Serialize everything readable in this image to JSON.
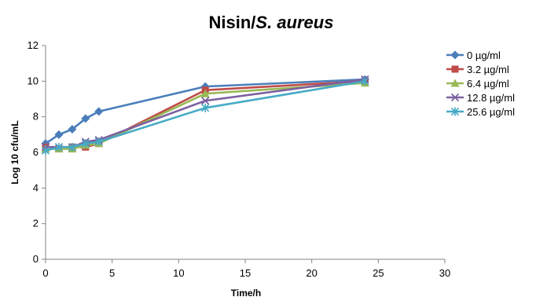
{
  "chart_data": {
    "type": "line",
    "title_main": "Nisin/",
    "title_italic": "S. aureus",
    "xlabel": "Time/h",
    "ylabel": "Log 10 cfu/mL",
    "xlim": [
      0,
      30
    ],
    "ylim": [
      0,
      12
    ],
    "xticks": [
      0,
      5,
      10,
      15,
      20,
      25,
      30
    ],
    "yticks": [
      0,
      2,
      4,
      6,
      8,
      10,
      12
    ],
    "grid": false,
    "legend_position": "right",
    "series": [
      {
        "name": "0 µg/ml",
        "color": "#4a7ebb",
        "marker": "diamond",
        "x": [
          0,
          1,
          2,
          3,
          4,
          12,
          24
        ],
        "y": [
          6.5,
          7.0,
          7.3,
          7.9,
          8.3,
          9.7,
          10.1
        ]
      },
      {
        "name": "3.2  µg/ml",
        "color": "#be4b48",
        "marker": "square",
        "x": [
          0,
          1,
          2,
          3,
          4,
          12,
          24
        ],
        "y": [
          6.3,
          6.2,
          6.3,
          6.3,
          6.5,
          9.5,
          10.0
        ]
      },
      {
        "name": "6.4 µg/ml",
        "color": "#98b954",
        "marker": "triangle",
        "x": [
          0,
          1,
          2,
          3,
          4,
          12,
          24
        ],
        "y": [
          6.2,
          6.2,
          6.2,
          6.4,
          6.5,
          9.3,
          9.9
        ]
      },
      {
        "name": "12.8 µg/ml",
        "color": "#7d60a0",
        "marker": "x",
        "x": [
          0,
          1,
          2,
          3,
          4,
          12,
          24
        ],
        "y": [
          6.3,
          6.3,
          6.3,
          6.6,
          6.7,
          8.9,
          10.1
        ]
      },
      {
        "name": "25.6 µg/ml",
        "color": "#46aac5",
        "marker": "star",
        "x": [
          0,
          1,
          2,
          3,
          4,
          12,
          24
        ],
        "y": [
          6.1,
          6.3,
          6.3,
          6.5,
          6.6,
          8.5,
          10.0
        ]
      }
    ]
  }
}
